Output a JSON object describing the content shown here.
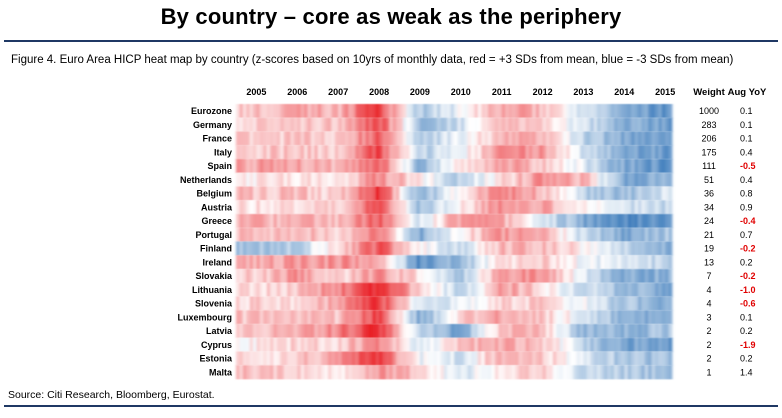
{
  "headline": "By country – core as weak as the periphery",
  "caption": "Figure 4. Euro Area HICP heat map by country (z-scores based on 10yrs of monthly data, red = +3 SDs from mean, blue = -3 SDs from mean)",
  "source": "Source: Citi Research, Bloomberg, Eurostat.",
  "colors": {
    "hot": "#e8191f",
    "cold": "#2a6fb5",
    "neutral": "#ffffff",
    "negative_text": "#e00000",
    "rule": "#1f3864"
  },
  "chart_data": {
    "type": "heatmap",
    "title": "Euro Area HICP heat map by country",
    "x_start": "2005-01",
    "x_end": "2015-08",
    "x_ticks": [
      "2005",
      "2006",
      "2007",
      "2008",
      "2009",
      "2010",
      "2011",
      "2012",
      "2013",
      "2014",
      "2015"
    ],
    "z_range": [
      -3,
      3
    ],
    "z_description": "z-scores based on 10yrs of monthly data",
    "column_headers": {
      "weight": "Weight",
      "yoy": "Aug YoY"
    },
    "rows": [
      {
        "country": "Eurozone",
        "weight": "1000",
        "yoy": "0.1"
      },
      {
        "country": "Germany",
        "weight": "283",
        "yoy": "0.1"
      },
      {
        "country": "France",
        "weight": "206",
        "yoy": "0.1"
      },
      {
        "country": "Italy",
        "weight": "175",
        "yoy": "0.4"
      },
      {
        "country": "Spain",
        "weight": "111",
        "yoy": "-0.5"
      },
      {
        "country": "Netherlands",
        "weight": "51",
        "yoy": "0.4"
      },
      {
        "country": "Belgium",
        "weight": "36",
        "yoy": "0.8"
      },
      {
        "country": "Austria",
        "weight": "34",
        "yoy": "0.9"
      },
      {
        "country": "Greece",
        "weight": "24",
        "yoy": "-0.4"
      },
      {
        "country": "Portugal",
        "weight": "21",
        "yoy": "0.7"
      },
      {
        "country": "Finland",
        "weight": "19",
        "yoy": "-0.2"
      },
      {
        "country": "Ireland",
        "weight": "13",
        "yoy": "0.2"
      },
      {
        "country": "Slovakia",
        "weight": "7",
        "yoy": "-0.2"
      },
      {
        "country": "Lithuania",
        "weight": "4",
        "yoy": "-1.0"
      },
      {
        "country": "Slovenia",
        "weight": "4",
        "yoy": "-0.6"
      },
      {
        "country": "Luxembourg",
        "weight": "3",
        "yoy": "0.1"
      },
      {
        "country": "Latvia",
        "weight": "2",
        "yoy": "0.2"
      },
      {
        "country": "Cyprus",
        "weight": "2",
        "yoy": "-1.9"
      },
      {
        "country": "Estonia",
        "weight": "2",
        "yoy": "0.2"
      },
      {
        "country": "Malta",
        "weight": "1",
        "yoy": "1.4"
      }
    ],
    "z_profile": {
      "description": "Approximate z-score by year (columns 2005..2015) for each row, read from the colour intensity",
      "years": [
        2005,
        2006,
        2007,
        2008,
        2009,
        2010,
        2011,
        2012,
        2013,
        2014,
        2015
      ],
      "values": [
        [
          0.8,
          1.2,
          1.0,
          2.6,
          -1.2,
          -0.2,
          1.2,
          1.0,
          -0.8,
          -1.8,
          -2.2
        ],
        [
          0.6,
          0.8,
          0.9,
          2.4,
          -1.4,
          -0.6,
          1.0,
          0.8,
          -0.6,
          -1.6,
          -2.0
        ],
        [
          0.7,
          0.7,
          0.6,
          2.2,
          -1.3,
          -0.2,
          1.0,
          0.9,
          -0.9,
          -1.8,
          -2.1
        ],
        [
          0.6,
          0.8,
          0.6,
          2.4,
          -1.0,
          -0.2,
          1.4,
          1.5,
          -0.6,
          -1.8,
          -2.0
        ],
        [
          1.2,
          1.2,
          0.9,
          2.2,
          -1.6,
          0.4,
          1.4,
          0.8,
          -0.4,
          -1.8,
          -2.2
        ],
        [
          0.2,
          0.4,
          0.2,
          1.6,
          0.2,
          -1.0,
          0.4,
          1.4,
          1.0,
          -1.8,
          -1.6
        ],
        [
          0.8,
          0.8,
          0.6,
          2.8,
          -1.8,
          0.4,
          1.6,
          1.0,
          -1.0,
          -1.4,
          -0.6
        ],
        [
          0.4,
          0.5,
          0.7,
          2.4,
          -1.4,
          0.2,
          1.6,
          1.2,
          0.0,
          -0.6,
          -0.8
        ],
        [
          1.0,
          1.0,
          0.8,
          2.2,
          -0.6,
          1.4,
          1.0,
          -0.4,
          -1.8,
          -2.4,
          -2.0
        ],
        [
          0.8,
          1.0,
          0.6,
          1.8,
          -1.8,
          0.2,
          1.4,
          1.2,
          -0.8,
          -1.8,
          -1.2
        ],
        [
          -1.2,
          -1.0,
          0.4,
          2.2,
          0.2,
          -0.8,
          1.0,
          1.0,
          0.2,
          -0.8,
          -1.6
        ],
        [
          1.0,
          1.4,
          1.4,
          1.4,
          -2.4,
          -1.4,
          0.4,
          0.8,
          -0.2,
          -0.4,
          -1.0
        ],
        [
          0.6,
          1.4,
          0.4,
          1.4,
          0.4,
          -1.2,
          1.4,
          1.4,
          -0.4,
          -1.8,
          -1.6
        ],
        [
          0.4,
          0.8,
          1.6,
          3.0,
          0.6,
          -1.0,
          1.4,
          0.4,
          -0.6,
          -1.4,
          -1.8
        ],
        [
          0.6,
          0.4,
          1.2,
          2.6,
          -0.4,
          -0.4,
          0.6,
          0.6,
          -0.2,
          -1.2,
          -1.6
        ],
        [
          0.8,
          1.0,
          0.8,
          2.6,
          -1.8,
          0.6,
          1.2,
          0.8,
          -0.4,
          -1.6,
          -2.0
        ],
        [
          0.8,
          1.0,
          1.6,
          2.8,
          -0.8,
          -2.0,
          1.0,
          0.8,
          -1.6,
          -1.6,
          -1.2
        ],
        [
          0.2,
          0.6,
          0.6,
          1.6,
          -0.6,
          0.8,
          1.2,
          0.8,
          -1.0,
          -1.8,
          -2.2
        ],
        [
          0.4,
          0.6,
          1.4,
          2.6,
          -0.2,
          -0.6,
          1.2,
          0.8,
          -0.4,
          -1.2,
          -1.4
        ],
        [
          0.8,
          0.6,
          0.4,
          1.4,
          0.6,
          -0.6,
          0.4,
          0.6,
          -0.8,
          -1.0,
          -1.4
        ]
      ]
    }
  }
}
